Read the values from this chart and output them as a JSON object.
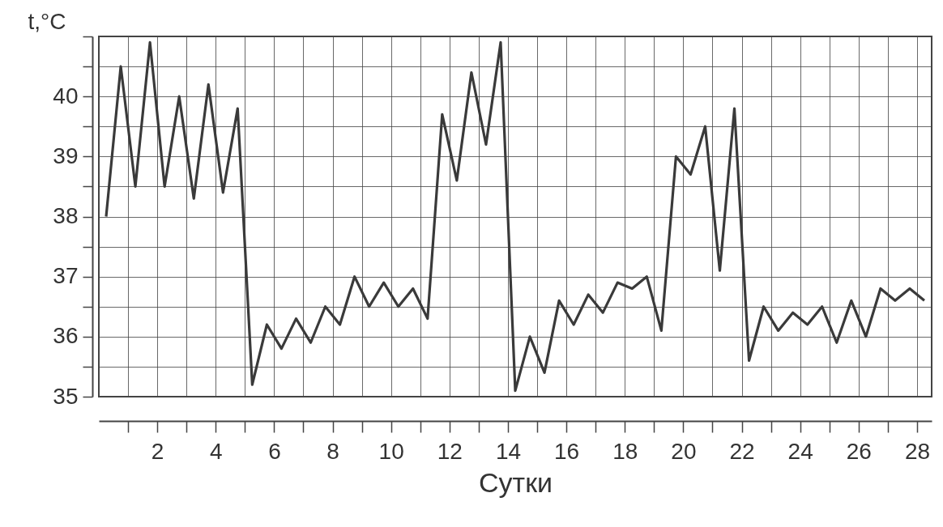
{
  "chart_data": {
    "type": "line",
    "xlabel": "Сутки",
    "ylabel": "t,°C",
    "x": [
      0.25,
      0.75,
      1.25,
      1.75,
      2.25,
      2.75,
      3.25,
      3.75,
      4.25,
      4.75,
      5.25,
      5.75,
      6.25,
      6.75,
      7.25,
      7.75,
      8.25,
      8.75,
      9.25,
      9.75,
      10.25,
      10.75,
      11.25,
      11.75,
      12.25,
      12.75,
      13.25,
      13.75,
      14.25,
      14.75,
      15.25,
      15.75,
      16.25,
      16.75,
      17.25,
      17.75,
      18.25,
      18.75,
      19.25,
      19.75,
      20.25,
      20.75,
      21.25,
      21.75,
      22.25,
      22.75,
      23.25,
      23.75,
      24.25,
      24.75,
      25.25,
      25.75,
      26.25,
      26.75,
      27.25,
      27.75,
      28.25
    ],
    "series": [
      {
        "color": "#3a3a3a",
        "values": [
          38.0,
          40.5,
          38.5,
          40.9,
          38.5,
          40.0,
          38.3,
          40.2,
          38.4,
          39.8,
          35.2,
          36.2,
          35.8,
          36.3,
          35.9,
          36.5,
          36.2,
          37.0,
          36.5,
          36.9,
          36.5,
          36.8,
          36.3,
          39.7,
          38.6,
          40.4,
          39.2,
          40.9,
          35.1,
          36.0,
          35.4,
          36.6,
          36.2,
          36.7,
          36.4,
          36.9,
          36.8,
          37.0,
          36.1,
          39.0,
          38.7,
          39.5,
          37.1,
          39.8,
          35.6,
          36.5,
          36.1,
          36.4,
          36.2,
          36.5,
          35.9,
          36.6,
          36.0,
          36.8,
          36.6,
          36.8,
          36.6
        ]
      }
    ],
    "xlim": [
      0,
      28.5
    ],
    "xticks": [
      {
        "value": 1,
        "label": null
      },
      2,
      {
        "value": 3,
        "label": null
      },
      4,
      {
        "value": 5,
        "label": null
      },
      6,
      {
        "value": 7,
        "label": null
      },
      8,
      {
        "value": 9,
        "label": null
      },
      10,
      {
        "value": 11,
        "label": null
      },
      12,
      {
        "value": 13,
        "label": null
      },
      14,
      {
        "value": 15,
        "label": null
      },
      16,
      {
        "value": 17,
        "label": null
      },
      18,
      {
        "value": 19,
        "label": null
      },
      20,
      {
        "value": 21,
        "label": null
      },
      22,
      {
        "value": 23,
        "label": null
      },
      24,
      {
        "value": 25,
        "label": null
      },
      26,
      {
        "value": 27,
        "label": null
      },
      28
    ],
    "ylim": [
      35,
      41
    ],
    "yticks": [
      35,
      {
        "value": 35.5,
        "label": null
      },
      36,
      {
        "value": 36.5,
        "label": null
      },
      37,
      {
        "value": 37.5,
        "label": null
      },
      38,
      {
        "value": 38.5,
        "label": null
      },
      39,
      {
        "value": 39.5,
        "label": null
      },
      40,
      {
        "value": 40.5,
        "label": null
      },
      {
        "value": 41,
        "label": null
      }
    ],
    "grid": true,
    "marker": "none",
    "line_style": "solid"
  }
}
